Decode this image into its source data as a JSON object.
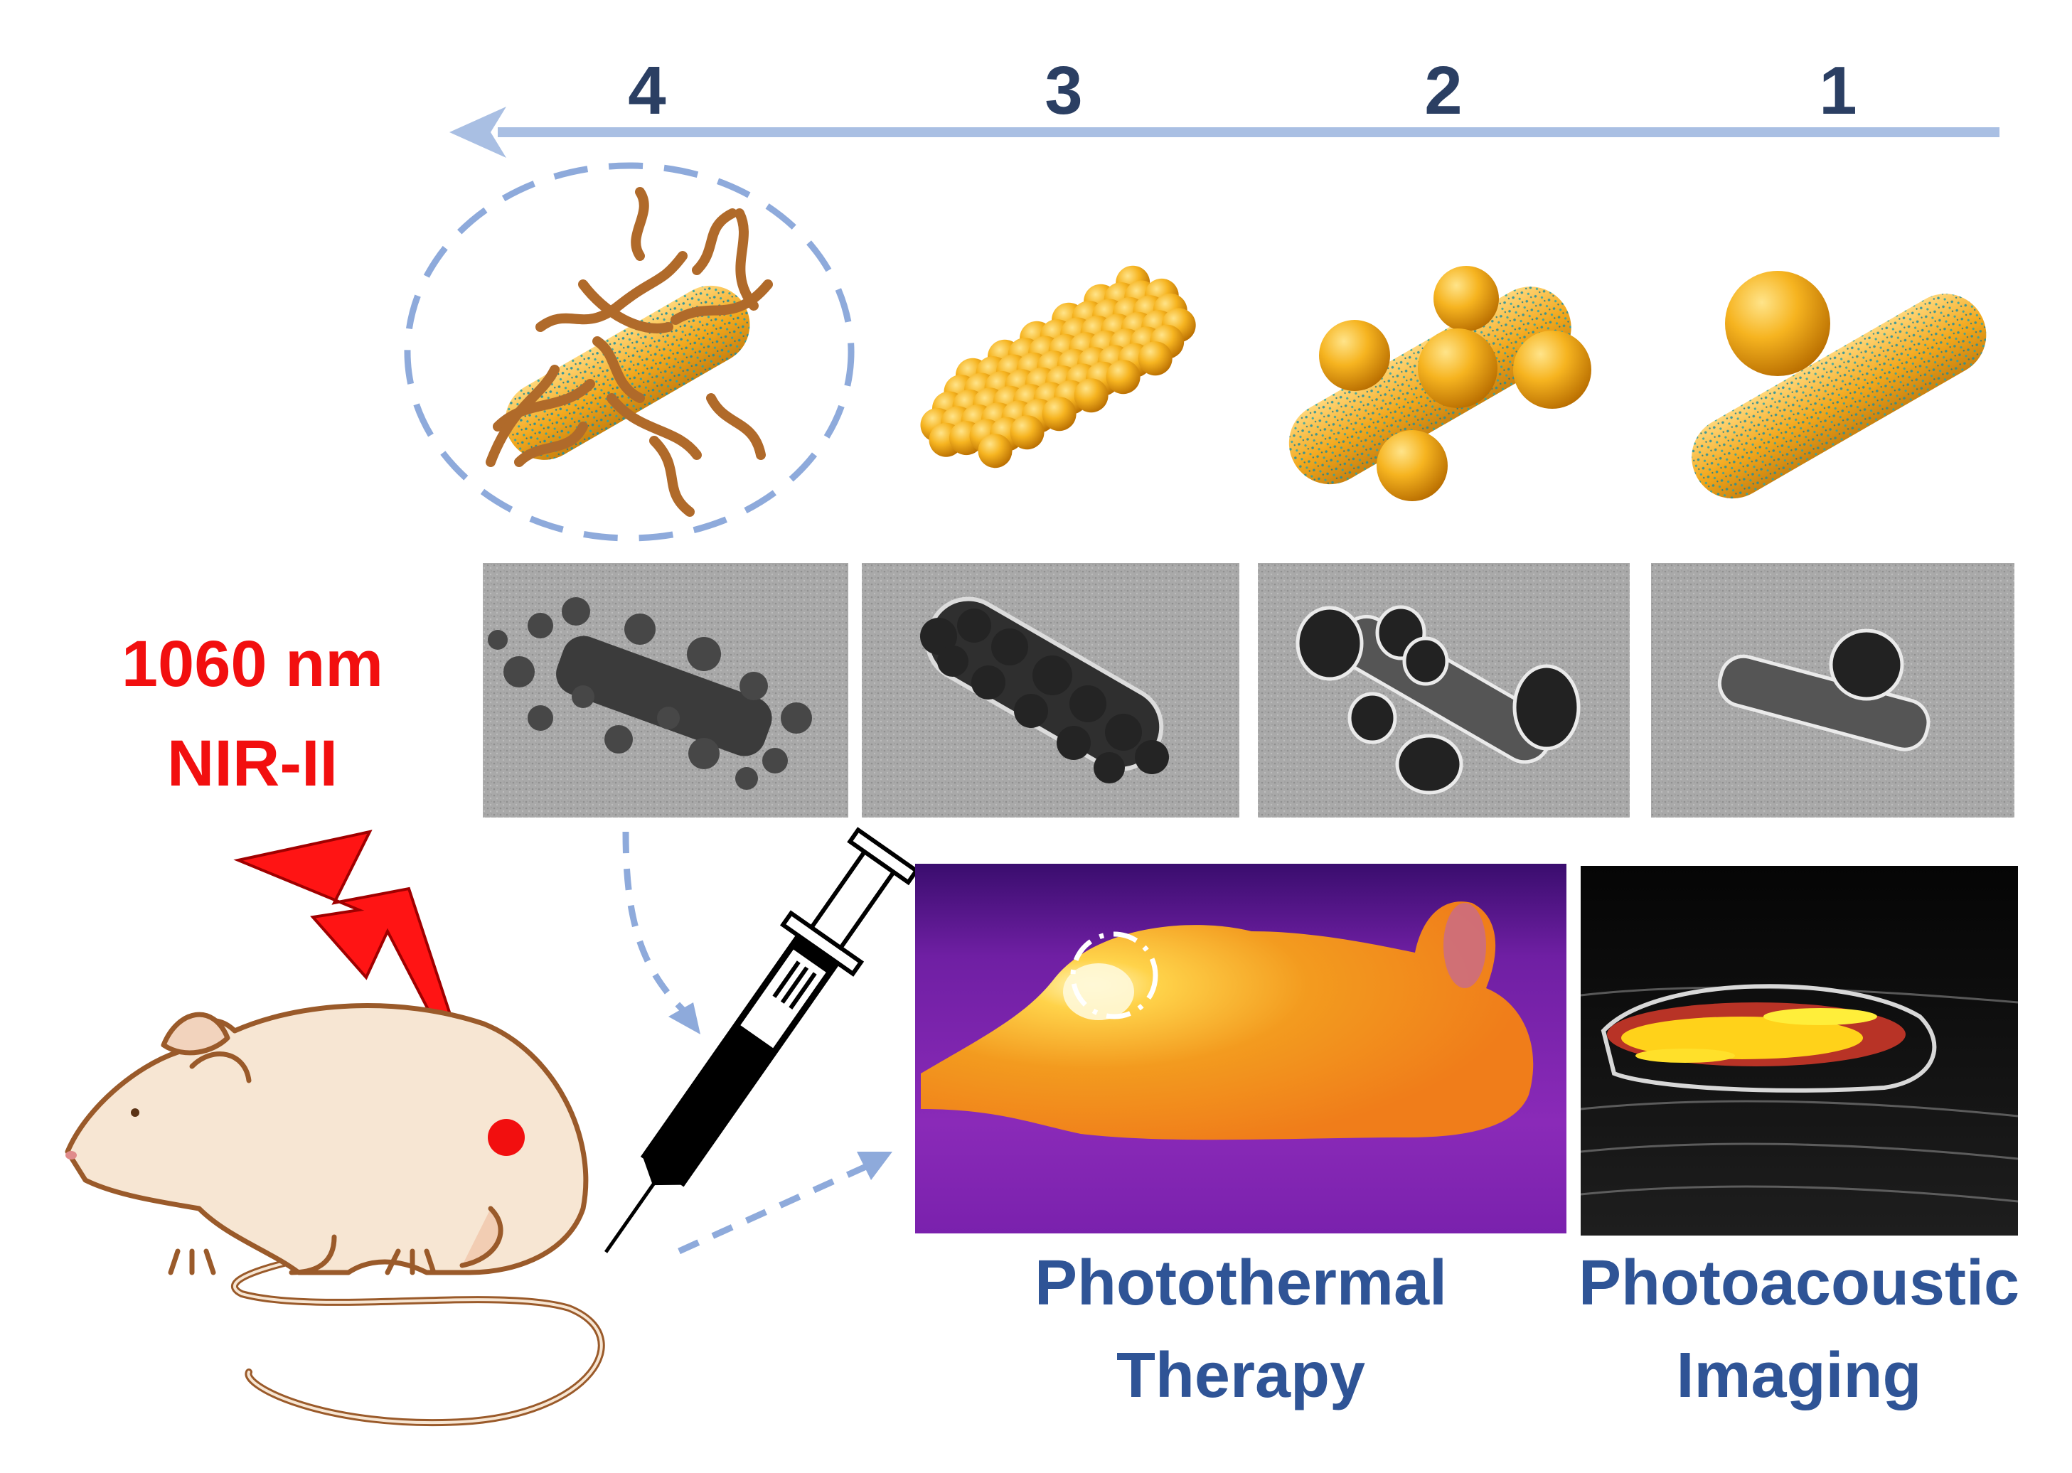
{
  "steps": [
    "4",
    "3",
    "2",
    "1"
  ],
  "laser": {
    "wavelength": "1060 nm",
    "window": "NIR-II"
  },
  "applications": [
    {
      "line1": "Photothermal",
      "line2": "Therapy"
    },
    {
      "line1": "Photoacoustic",
      "line2": "Imaging"
    }
  ],
  "colors": {
    "arrow": "#a9bfe3",
    "dashed_path": "#8eaadb",
    "step_numbers": "#2b3f63",
    "laser_text": "#f20f0f",
    "application_text": "#2f5496",
    "gold": "#f2a81d",
    "mouse_body": "#f7e6d3",
    "mouse_outline": "#9a5a2a"
  },
  "icons": [
    "lightning-bolt-icon",
    "syringe-icon",
    "mouse-icon"
  ]
}
